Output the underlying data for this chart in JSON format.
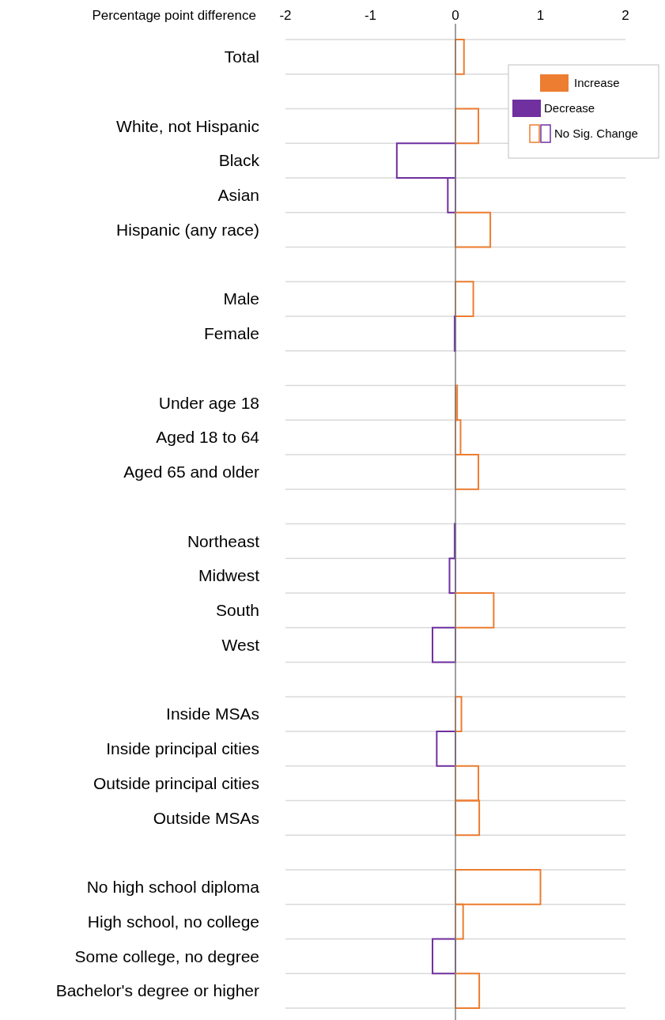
{
  "chart_data": {
    "type": "bar",
    "orientation": "horizontal",
    "xlabel": "Percentage point difference",
    "categories": [
      "Total",
      null,
      "White, not Hispanic",
      "Black",
      "Asian",
      "Hispanic (any race)",
      null,
      "Male",
      "Female",
      null,
      "Under age 18",
      "Aged 18 to 64",
      "Aged 65 and older",
      null,
      "Northeast",
      "Midwest",
      "South",
      "West",
      null,
      "Inside MSAs",
      "Inside principal cities",
      "Outside principal cities",
      "Outside MSAs",
      null,
      "No high school diploma",
      "High school, no college",
      "Some college, no degree",
      "Bachelor's degree or higher"
    ],
    "series": [
      {
        "name": "Increase",
        "color": "#ed7d31",
        "values": [
          null,
          null,
          null,
          null,
          null,
          null,
          null,
          null,
          null,
          null,
          null,
          null,
          null,
          null,
          null,
          null,
          null,
          null,
          null,
          null,
          null,
          null,
          null,
          null,
          null,
          null,
          null,
          null
        ]
      },
      {
        "name": "Decrease",
        "color": "#7030a0",
        "values": [
          null,
          null,
          null,
          null,
          null,
          null,
          null,
          null,
          null,
          null,
          null,
          null,
          null,
          null,
          null,
          null,
          null,
          null,
          null,
          null,
          null,
          null,
          null,
          null,
          null,
          null,
          null,
          null
        ]
      },
      {
        "name": "No Sig. Change",
        "colors": [
          "#ed7d31",
          null,
          "#ed7d31",
          "#7030a0",
          "#7030a0",
          "#ed7d31",
          null,
          "#ed7d31",
          "#7030a0",
          null,
          "#ed7d31",
          "#ed7d31",
          "#ed7d31",
          null,
          "#7030a0",
          "#7030a0",
          "#ed7d31",
          "#7030a0",
          null,
          "#ed7d31",
          "#7030a0",
          "#ed7d31",
          "#ed7d31",
          null,
          "#ed7d31",
          "#ed7d31",
          "#7030a0",
          "#ed7d31"
        ],
        "values": [
          0.1,
          null,
          0.27,
          -0.69,
          -0.09,
          0.41,
          null,
          0.21,
          -0.01,
          null,
          0.02,
          0.06,
          0.27,
          null,
          -0.01,
          -0.07,
          0.45,
          -0.27,
          null,
          0.07,
          -0.22,
          0.27,
          0.28,
          null,
          1.0,
          0.09,
          -0.27,
          0.28
        ]
      }
    ],
    "xlim": [
      -2,
      2
    ],
    "xticks": [
      -2,
      -1,
      0,
      1,
      2
    ],
    "grid": "y",
    "legend": "top right"
  }
}
